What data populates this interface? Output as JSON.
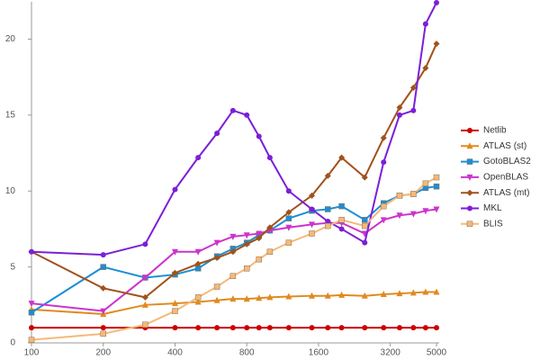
{
  "chart_data": {
    "type": "line",
    "x": [
      100,
      200,
      300,
      400,
      500,
      600,
      700,
      800,
      900,
      1000,
      1200,
      1500,
      1750,
      2000,
      2500,
      3000,
      3500,
      4000,
      4500,
      5000
    ],
    "xscale": "log",
    "xlim": [
      100,
      5000
    ],
    "xticks": [
      100,
      200,
      400,
      800,
      1600,
      3200,
      5000
    ],
    "ylim": [
      0,
      22.4
    ],
    "yticks": [
      0,
      5,
      10,
      15,
      20
    ],
    "grid": false,
    "legend": "right",
    "series": [
      {
        "name": "Netlib",
        "color": "#cc0000",
        "marker": "circle",
        "values": [
          1,
          1,
          1,
          1,
          1,
          1,
          1,
          1,
          1,
          1,
          1,
          1,
          1,
          1,
          1,
          1,
          1,
          1,
          1,
          1
        ]
      },
      {
        "name": "ATLAS (st)",
        "color": "#e08a1e",
        "marker": "triangle-up",
        "values": [
          2.2,
          1.9,
          2.5,
          2.6,
          2.7,
          2.8,
          2.9,
          2.9,
          2.95,
          3.0,
          3.05,
          3.1,
          3.1,
          3.15,
          3.1,
          3.2,
          3.25,
          3.3,
          3.35,
          3.35
        ]
      },
      {
        "name": "GotoBLAS2",
        "color": "#1a8fd6",
        "marker": "square",
        "values": [
          2.0,
          5.0,
          4.3,
          4.5,
          4.9,
          5.7,
          6.2,
          6.6,
          7.1,
          7.4,
          8.2,
          8.7,
          8.8,
          9.0,
          8.1,
          9.2,
          9.7,
          9.8,
          10.2,
          10.3
        ]
      },
      {
        "name": "OpenBLAS",
        "color": "#cc33cc",
        "marker": "triangle-down",
        "values": [
          2.6,
          2.1,
          4.3,
          6.0,
          6.0,
          6.6,
          7.0,
          7.1,
          7.2,
          7.4,
          7.6,
          7.8,
          7.9,
          7.9,
          7.2,
          8.1,
          8.4,
          8.5,
          8.7,
          8.8
        ]
      },
      {
        "name": "ATLAS (mt)",
        "color": "#a0521b",
        "marker": "diamond",
        "values": [
          6.0,
          3.6,
          3.0,
          4.6,
          5.2,
          5.6,
          6.0,
          6.5,
          6.9,
          7.6,
          8.6,
          9.7,
          11.0,
          12.2,
          10.9,
          13.5,
          15.5,
          16.8,
          18.1,
          19.7
        ]
      },
      {
        "name": "MKL",
        "color": "#7b1fd8",
        "marker": "circle",
        "values": [
          6.0,
          5.8,
          6.5,
          10.1,
          12.2,
          13.8,
          15.3,
          15.0,
          13.6,
          12.2,
          10.0,
          8.8,
          8.0,
          7.5,
          6.6,
          11.9,
          15.0,
          15.3,
          21.0,
          22.4
        ]
      },
      {
        "name": "BLIS",
        "color": "#f5b97a",
        "marker": "square",
        "values": [
          0.2,
          0.6,
          1.2,
          2.1,
          3.0,
          3.7,
          4.4,
          4.9,
          5.5,
          6.0,
          6.6,
          7.2,
          7.7,
          8.1,
          7.7,
          9.0,
          9.7,
          9.8,
          10.5,
          10.9
        ]
      }
    ]
  }
}
